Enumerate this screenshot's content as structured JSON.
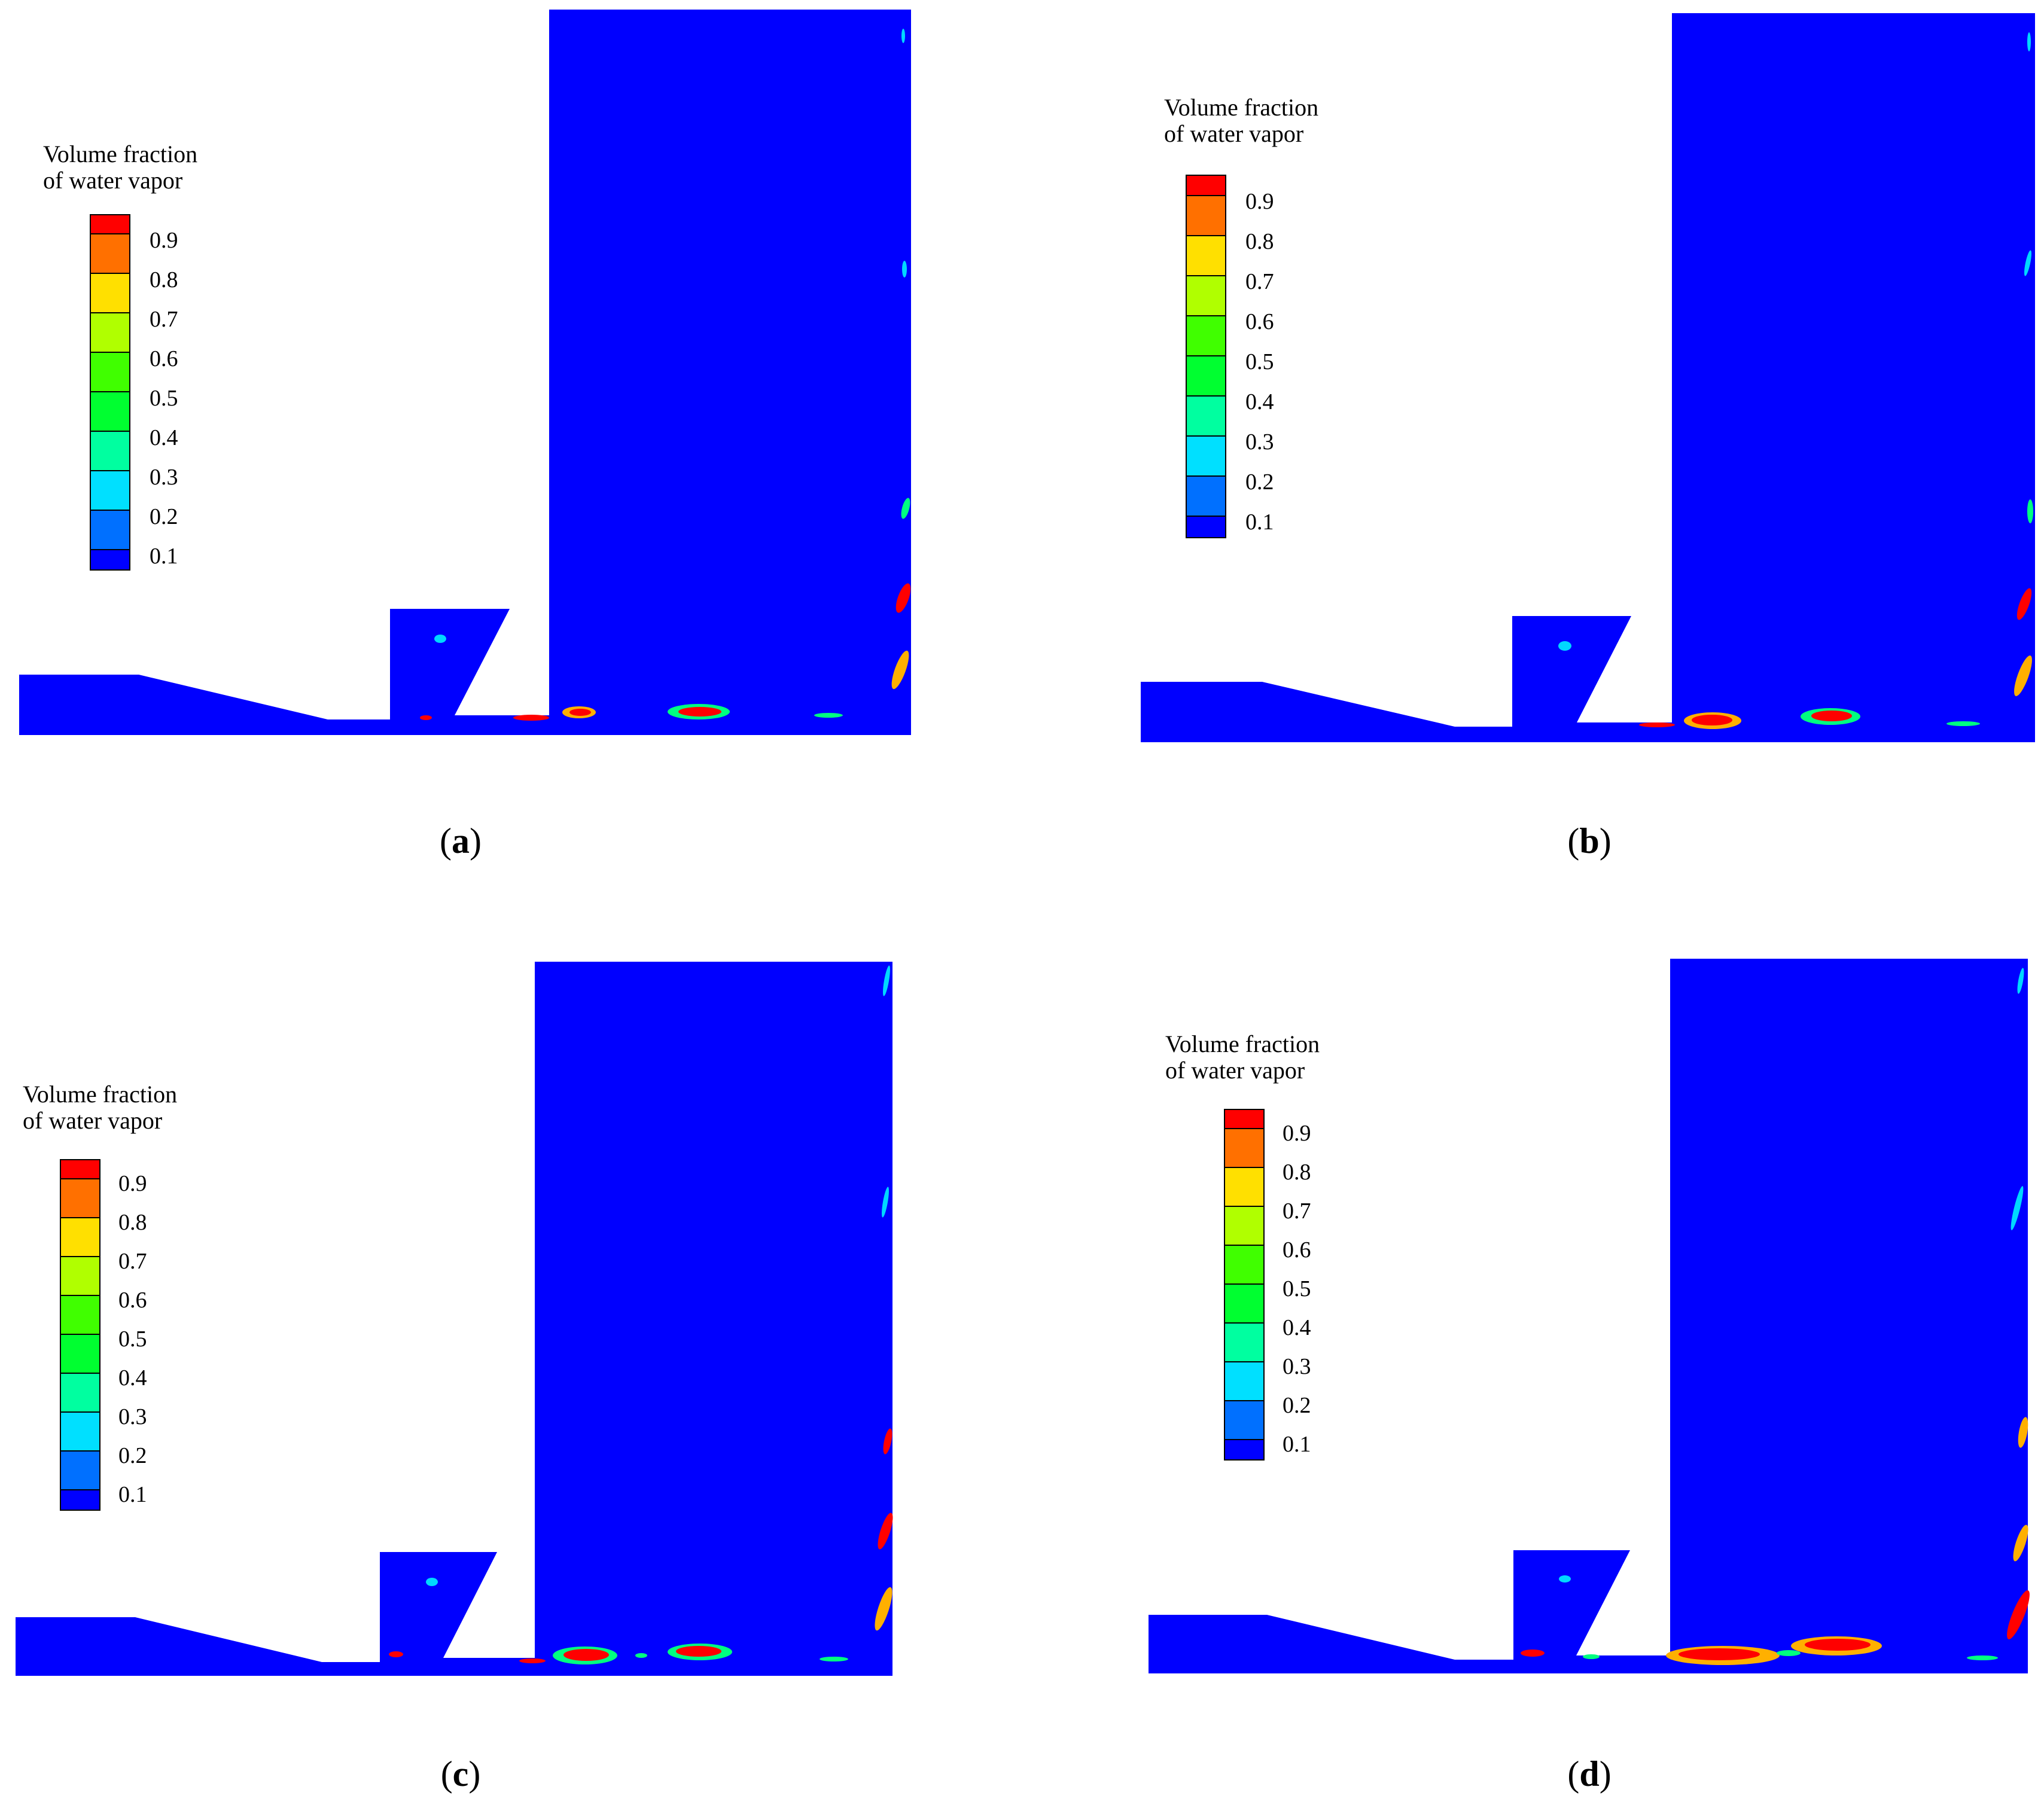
{
  "legend": {
    "title_line1": "Volume fraction",
    "title_line2": "of water vapor",
    "ticks": [
      "0.9",
      "0.8",
      "0.7",
      "0.6",
      "0.5",
      "0.4",
      "0.3",
      "0.2",
      "0.1"
    ],
    "colors": [
      "#ff0000",
      "#ff7000",
      "#ffe000",
      "#b0ff00",
      "#40ff00",
      "#00ff30",
      "#00ffa0",
      "#00e0ff",
      "#0070ff",
      "#0000ff"
    ]
  },
  "panels": [
    {
      "label": "a"
    },
    {
      "label": "b"
    },
    {
      "label": "c"
    },
    {
      "label": "d"
    }
  ],
  "colors": {
    "fluid": "#0000ff",
    "vapor_core": "#ff0000",
    "vapor_mid": "#ffb000",
    "vapor_edge": "#00ff80",
    "vapor_trace": "#00d8ff"
  }
}
